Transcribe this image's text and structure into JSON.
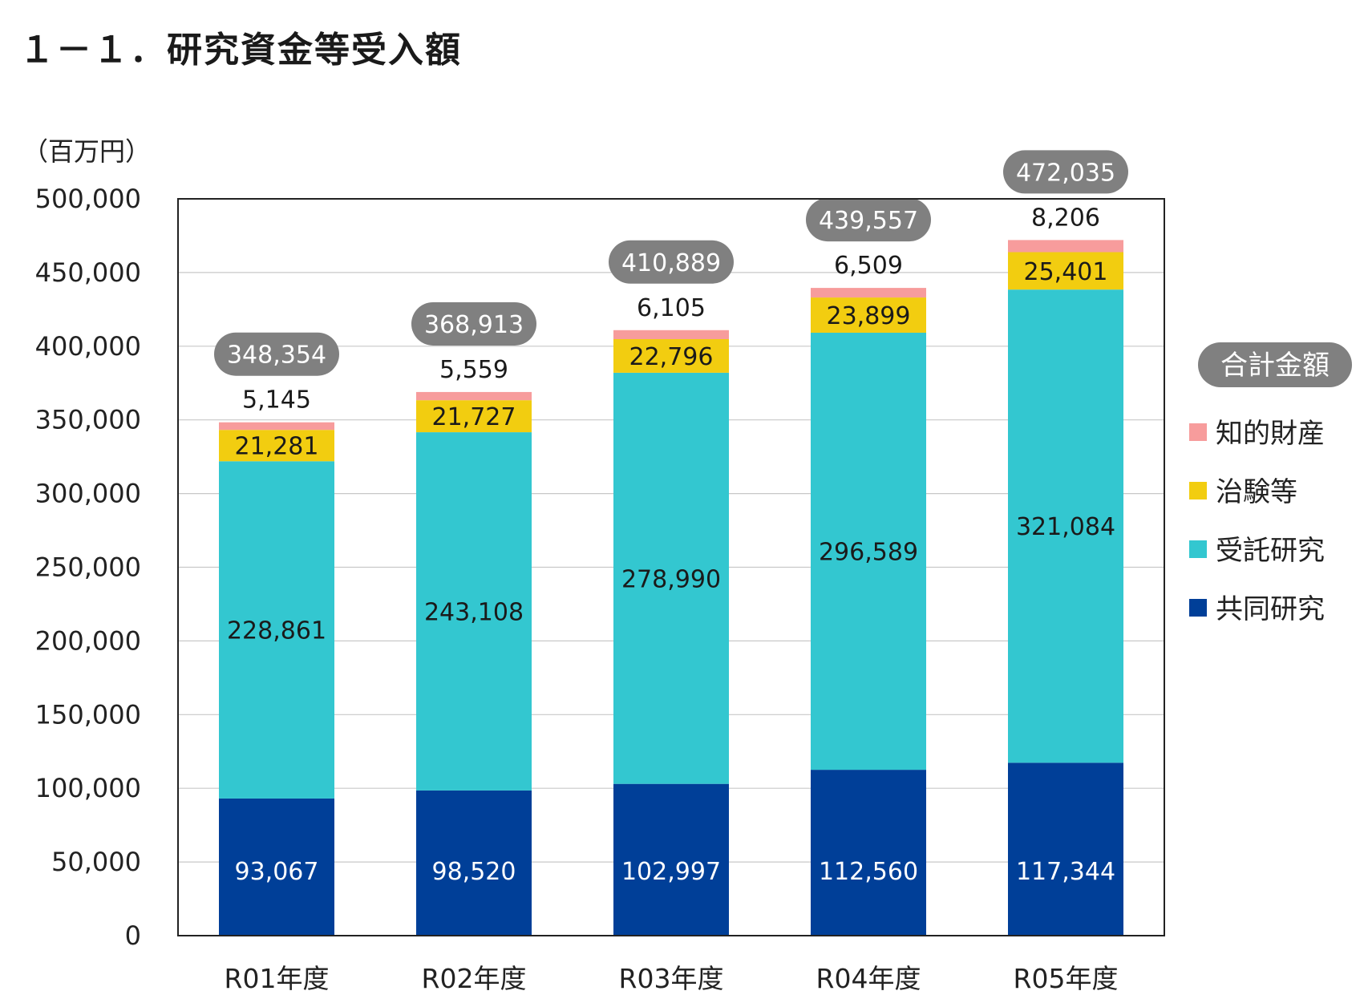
{
  "page": {
    "title": "１－１．研究資金等受入額"
  },
  "chart_data": {
    "type": "bar",
    "stacked": true,
    "title": "１－１．研究資金等受入額",
    "unit_label": "（百万円）",
    "xlabel": "",
    "ylabel": "（百万円）",
    "ylim": [
      0,
      500000
    ],
    "y_ticks": [
      0,
      50000,
      100000,
      150000,
      200000,
      250000,
      300000,
      350000,
      400000,
      450000,
      500000
    ],
    "y_tick_labels": [
      "0",
      "50,000",
      "100,000",
      "150,000",
      "200,000",
      "250,000",
      "300,000",
      "350,000",
      "400,000",
      "450,000",
      "500,000"
    ],
    "grid": true,
    "categories": [
      "R01年度",
      "R02年度",
      "R03年度",
      "R04年度",
      "R05年度"
    ],
    "series": [
      {
        "name": "共同研究",
        "color": "#003f98",
        "label_color": "#ffffff",
        "values": [
          93067,
          98520,
          102997,
          112560,
          117344
        ],
        "labels": [
          "93,067",
          "98,520",
          "102,997",
          "112,560",
          "117,344"
        ]
      },
      {
        "name": "受託研究",
        "color": "#33c7d0",
        "label_color": "#1a1a1a",
        "values": [
          228861,
          243108,
          278990,
          296589,
          321084
        ],
        "labels": [
          "228,861",
          "243,108",
          "278,990",
          "296,589",
          "321,084"
        ]
      },
      {
        "name": "治験等",
        "color": "#f2cd10",
        "label_color": "#1a1a1a",
        "values": [
          21281,
          21727,
          22796,
          23899,
          25401
        ],
        "labels": [
          "21,281",
          "21,727",
          "22,796",
          "23,899",
          "25,401"
        ]
      },
      {
        "name": "知的財産",
        "color": "#f79c9c",
        "label_color": "#1a1a1a",
        "values": [
          5145,
          5559,
          6105,
          6509,
          8206
        ],
        "labels": [
          "5,145",
          "5,559",
          "6,105",
          "6,509",
          "8,206"
        ]
      }
    ],
    "totals": [
      348354,
      368913,
      410889,
      439557,
      472035
    ],
    "total_labels": [
      "348,354",
      "368,913",
      "410,889",
      "439,557",
      "472,035"
    ],
    "total_badge_color": "#808080",
    "legend": {
      "title": "合計金額",
      "position": "right",
      "items": [
        "知的財産",
        "治験等",
        "受託研究",
        "共同研究"
      ]
    }
  }
}
